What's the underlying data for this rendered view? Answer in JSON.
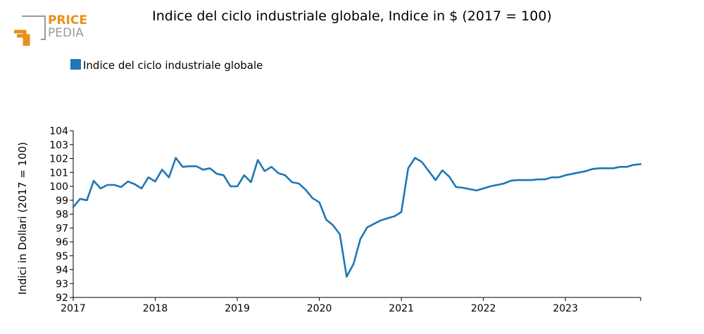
{
  "logo": {
    "line1": "PRICE",
    "line2": "PEDIA"
  },
  "title": "Indice del ciclo industriale globale, Indice in $ (2017 = 100)",
  "colors": {
    "series": "#1f77b4",
    "logo_orange": "#e8901a",
    "logo_gray": "#9a9a9a"
  },
  "chart_data": {
    "type": "line",
    "title": "Indice del ciclo industriale globale, Indice in $ (2017 = 100)",
    "ylabel": "Indici in Dollari (2017 = 100)",
    "xlabel": "",
    "ylim": [
      92,
      104
    ],
    "yticks": [
      "92",
      "93",
      "94",
      "95",
      "96",
      "97",
      "98",
      "99",
      "100",
      "101",
      "102",
      "103",
      "104"
    ],
    "xticks": [
      "2017",
      "2018",
      "2019",
      "2020",
      "2021",
      "2022",
      "2023"
    ],
    "x_start": "2017-01",
    "x_end": "2023-12",
    "legend": "top-left",
    "grid": false,
    "series": [
      {
        "name": "Indice del ciclo industriale globale",
        "x": [
          "2017-01",
          "2017-02",
          "2017-03",
          "2017-04",
          "2017-05",
          "2017-06",
          "2017-07",
          "2017-08",
          "2017-09",
          "2017-10",
          "2017-11",
          "2017-12",
          "2018-01",
          "2018-02",
          "2018-03",
          "2018-04",
          "2018-05",
          "2018-06",
          "2018-07",
          "2018-08",
          "2018-09",
          "2018-10",
          "2018-11",
          "2018-12",
          "2019-01",
          "2019-02",
          "2019-03",
          "2019-04",
          "2019-05",
          "2019-06",
          "2019-07",
          "2019-08",
          "2019-09",
          "2019-10",
          "2019-11",
          "2019-12",
          "2020-01",
          "2020-02",
          "2020-03",
          "2020-04",
          "2020-05",
          "2020-06",
          "2020-07",
          "2020-08",
          "2020-09",
          "2020-10",
          "2020-11",
          "2020-12",
          "2021-01",
          "2021-02",
          "2021-03",
          "2021-04",
          "2021-05",
          "2021-06",
          "2021-07",
          "2021-08",
          "2021-09",
          "2021-10",
          "2021-11",
          "2021-12",
          "2022-01",
          "2022-02",
          "2022-03",
          "2022-04",
          "2022-05",
          "2022-06",
          "2022-07",
          "2022-08",
          "2022-09",
          "2022-10",
          "2022-11",
          "2022-12",
          "2023-01",
          "2023-02",
          "2023-03",
          "2023-04",
          "2023-05",
          "2023-06",
          "2023-07",
          "2023-08",
          "2023-09",
          "2023-10",
          "2023-11",
          "2023-12"
        ],
        "values": [
          98.5,
          99.1,
          99.0,
          100.4,
          99.85,
          100.1,
          100.1,
          99.95,
          100.35,
          100.15,
          99.85,
          100.65,
          100.35,
          101.2,
          100.65,
          102.05,
          101.4,
          101.45,
          101.45,
          101.2,
          101.3,
          100.9,
          100.8,
          100.0,
          100.0,
          100.8,
          100.3,
          101.9,
          101.1,
          101.4,
          100.95,
          100.8,
          100.3,
          100.2,
          99.75,
          99.15,
          98.85,
          97.6,
          97.2,
          96.55,
          93.5,
          94.4,
          96.2,
          97.05,
          97.3,
          97.55,
          97.7,
          97.85,
          98.15,
          101.3,
          102.05,
          101.75,
          101.1,
          100.45,
          101.15,
          100.7,
          99.95,
          99.9,
          99.8,
          99.7,
          99.85,
          100.0,
          100.1,
          100.2,
          100.4,
          100.45,
          100.45,
          100.45,
          100.5,
          100.5,
          100.65,
          100.65,
          100.8,
          100.9,
          101.0,
          101.1,
          101.25,
          101.3,
          101.3,
          101.3,
          101.4,
          101.4,
          101.55,
          101.6
        ]
      }
    ]
  }
}
